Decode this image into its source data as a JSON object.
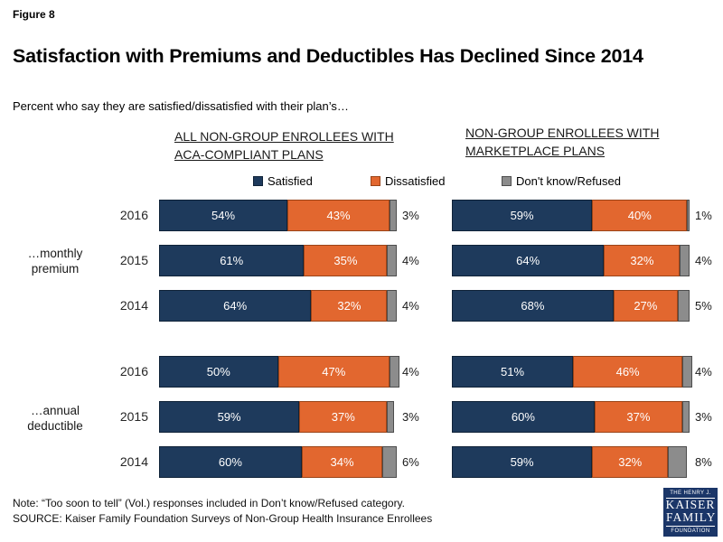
{
  "figure_label": "Figure 8",
  "title": "Satisfaction with Premiums and Deductibles Has Declined Since 2014",
  "subtitle": "Percent who say they are satisfied/dissatisfied with their plan’s…",
  "legend": [
    {
      "label": "Satisfied",
      "color": "#1E3A5C",
      "border": "#0F2238"
    },
    {
      "label": "Dissatisfied",
      "color": "#E2672F",
      "border": "#9A4418"
    },
    {
      "label": "Don't know/Refused",
      "color": "#8C8C8C",
      "border": "#4D4D4D"
    }
  ],
  "note": "Note: “Too soon to tell” (Vol.) responses included in Don’t know/Refused category.",
  "source": "SOURCE: Kaiser Family Foundation Surveys of Non-Group Health Insurance Enrollees",
  "logo": {
    "line1": "THE HENRY J.",
    "line2": "KAISER",
    "line3": "FAMILY",
    "line4": "FOUNDATION"
  },
  "chart_data": {
    "type": "bar",
    "orientation": "horizontal",
    "stacked": true,
    "unit": "%",
    "axis_range": [
      0,
      100
    ],
    "grid": false,
    "legend_position": "top",
    "series_names": [
      "Satisfied",
      "Dissatisfied",
      "Don't know/Refused"
    ],
    "colors": [
      "#1E3A5C",
      "#E2672F",
      "#8C8C8C"
    ],
    "row_groups": [
      "…monthly premium",
      "…annual deductible"
    ],
    "years": [
      "2016",
      "2015",
      "2014"
    ],
    "panels": [
      {
        "title_lines": [
          "ALL NON-GROUP ENROLLEES WITH",
          "ACA-COMPLIANT PLANS"
        ],
        "groups": [
          {
            "label": "…monthly premium",
            "rows": [
              {
                "year": "2016",
                "values": [
                  54,
                  43,
                  3
                ]
              },
              {
                "year": "2015",
                "values": [
                  61,
                  35,
                  4
                ]
              },
              {
                "year": "2014",
                "values": [
                  64,
                  32,
                  4
                ]
              }
            ]
          },
          {
            "label": "…annual deductible",
            "rows": [
              {
                "year": "2016",
                "values": [
                  50,
                  47,
                  4
                ]
              },
              {
                "year": "2015",
                "values": [
                  59,
                  37,
                  3
                ]
              },
              {
                "year": "2014",
                "values": [
                  60,
                  34,
                  6
                ]
              }
            ]
          }
        ]
      },
      {
        "title_lines": [
          "NON-GROUP ENROLLEES WITH",
          "MARKETPLACE PLANS"
        ],
        "groups": [
          {
            "label": "…monthly premium",
            "rows": [
              {
                "year": "2016",
                "values": [
                  59,
                  40,
                  1
                ]
              },
              {
                "year": "2015",
                "values": [
                  64,
                  32,
                  4
                ]
              },
              {
                "year": "2014",
                "values": [
                  68,
                  27,
                  5
                ]
              }
            ]
          },
          {
            "label": "…annual deductible",
            "rows": [
              {
                "year": "2016",
                "values": [
                  51,
                  46,
                  4
                ]
              },
              {
                "year": "2015",
                "values": [
                  60,
                  37,
                  3
                ]
              },
              {
                "year": "2014",
                "values": [
                  59,
                  32,
                  8
                ]
              }
            ]
          }
        ]
      }
    ]
  }
}
